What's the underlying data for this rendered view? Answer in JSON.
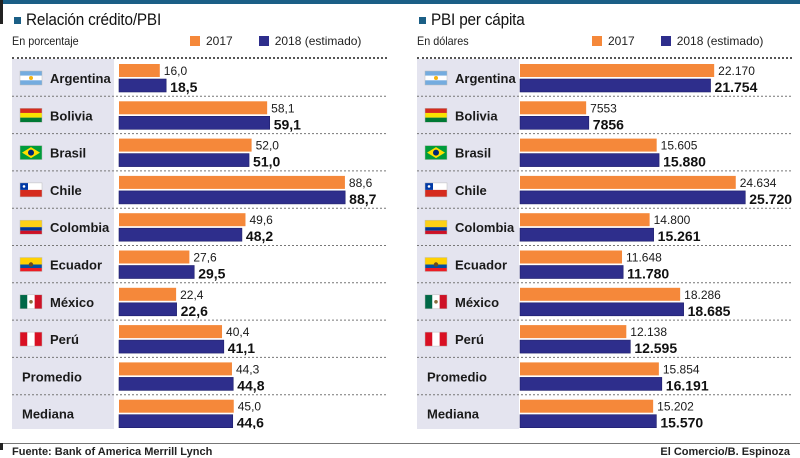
{
  "colors": {
    "accent": "#1b5f86",
    "series_2017": "#f5883a",
    "series_2018": "#2e2e8c",
    "label_bg": "#e4e4ef"
  },
  "legend": {
    "series_2017": "2017",
    "series_2018": "2018 (estimado)"
  },
  "footer": {
    "source": "Fuente: Bank of America Merrill Lynch",
    "credit": "El Comercio/B. Espinoza"
  },
  "chart_data": [
    {
      "type": "bar",
      "orientation": "horizontal",
      "title": "Relación crédito/PBI",
      "subtitle": "En porcentaje",
      "categories": [
        "Argentina",
        "Bolivia",
        "Brasil",
        "Chile",
        "Colombia",
        "Ecuador",
        "México",
        "Perú",
        "Promedio",
        "Mediana"
      ],
      "flags": [
        "argentina-flag-icon",
        "bolivia-flag-icon",
        "brazil-flag-icon",
        "chile-flag-icon",
        "colombia-flag-icon",
        "ecuador-flag-icon",
        "mexico-flag-icon",
        "peru-flag-icon",
        null,
        null
      ],
      "series": [
        {
          "name": "2017",
          "values": [
            16.0,
            58.1,
            52.0,
            88.6,
            49.6,
            27.6,
            22.4,
            40.4,
            44.3,
            45.0
          ],
          "labels": [
            "16,0",
            "58,1",
            "52,0",
            "88,6",
            "49,6",
            "27,6",
            "22,4",
            "40,4",
            "44,3",
            "45,0"
          ]
        },
        {
          "name": "2018 (estimado)",
          "values": [
            18.5,
            59.1,
            51.0,
            88.7,
            48.2,
            29.5,
            22.6,
            41.1,
            44.8,
            44.6
          ],
          "labels": [
            "18,5",
            "59,1",
            "51,0",
            "88,7",
            "48,2",
            "29,5",
            "22,6",
            "41,1",
            "44,8",
            "44,6"
          ]
        }
      ],
      "xlim": [
        0,
        100
      ],
      "xlabel": "",
      "ylabel": "",
      "grid": false,
      "legend_position": "top-right"
    },
    {
      "type": "bar",
      "orientation": "horizontal",
      "title": "PBI per cápita",
      "subtitle": "En dólares",
      "categories": [
        "Argentina",
        "Bolivia",
        "Brasil",
        "Chile",
        "Colombia",
        "Ecuador",
        "México",
        "Perú",
        "Promedio",
        "Mediana"
      ],
      "flags": [
        "argentina-flag-icon",
        "bolivia-flag-icon",
        "brazil-flag-icon",
        "chile-flag-icon",
        "colombia-flag-icon",
        "ecuador-flag-icon",
        "mexico-flag-icon",
        "peru-flag-icon",
        null,
        null
      ],
      "series": [
        {
          "name": "2017",
          "values": [
            22170,
            7553,
            15605,
            24634,
            14800,
            11648,
            18286,
            12138,
            15854,
            15202
          ],
          "labels": [
            "22.170",
            "7553",
            "15.605",
            "24.634",
            "14.800",
            "11.648",
            "18.286",
            "12.138",
            "15.854",
            "15.202"
          ]
        },
        {
          "name": "2018 (estimado)",
          "values": [
            21754,
            7856,
            15880,
            25720,
            15261,
            11780,
            18685,
            12595,
            16191,
            15570
          ],
          "labels": [
            "21.754",
            "7856",
            "15.880",
            "25.720",
            "15.261",
            "11.780",
            "18.685",
            "12.595",
            "16.191",
            "15.570"
          ]
        }
      ],
      "xlim": [
        0,
        29000
      ],
      "xlabel": "",
      "ylabel": "",
      "grid": false,
      "legend_position": "top-right"
    }
  ]
}
